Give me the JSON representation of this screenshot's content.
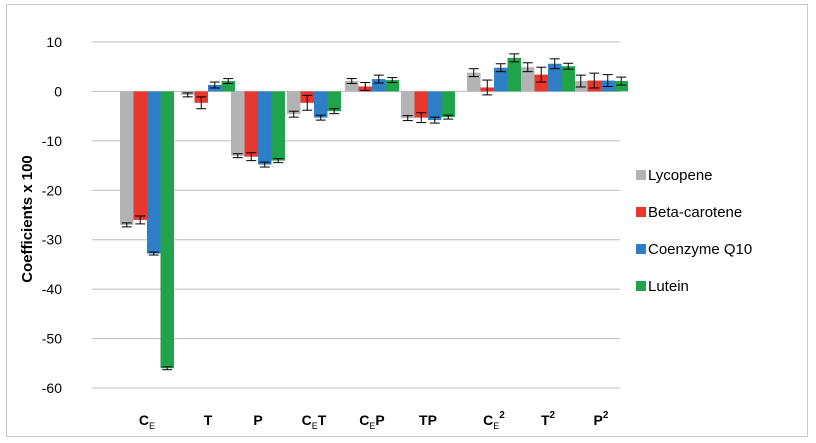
{
  "chart_data": {
    "type": "bar",
    "title": "",
    "xlabel": "",
    "ylabel": "Coefficients x 100",
    "ylim": [
      -60,
      10
    ],
    "yticks": [
      10,
      0,
      -10,
      -20,
      -30,
      -40,
      -50,
      -60
    ],
    "grid": true,
    "legend_position": "right",
    "categories": [
      {
        "base": "C",
        "sub": "E",
        "rest": "",
        "sup": ""
      },
      {
        "base": "T",
        "sub": "",
        "rest": "",
        "sup": ""
      },
      {
        "base": "P",
        "sub": "",
        "rest": "",
        "sup": ""
      },
      {
        "base": "C",
        "sub": "E",
        "rest": "T",
        "sup": ""
      },
      {
        "base": "C",
        "sub": "E",
        "rest": "P",
        "sup": ""
      },
      {
        "base": "TP",
        "sub": "",
        "rest": "",
        "sup": ""
      },
      {
        "base": "C",
        "sub": "E",
        "rest": "",
        "sup": "2"
      },
      {
        "base": "T",
        "sub": "",
        "rest": "",
        "sup": "2"
      },
      {
        "base": "P",
        "sub": "",
        "rest": "",
        "sup": "2"
      }
    ],
    "series": [
      {
        "name": "Lycopene",
        "color": "#b3b3b3",
        "values": [
          -27,
          -0.7,
          -13,
          -4.6,
          2.1,
          -5.4,
          3.8,
          4.9,
          2.1
        ],
        "errors": [
          0.4,
          0.4,
          0.4,
          0.6,
          0.5,
          0.5,
          0.8,
          0.9,
          1.2
        ]
      },
      {
        "name": "Beta-carotene",
        "color": "#e8372e",
        "values": [
          -26,
          -2.3,
          -13.2,
          -2.3,
          1,
          -5.3,
          0.8,
          3.4,
          2.2
        ],
        "errors": [
          0.8,
          1.2,
          0.8,
          1.5,
          0.8,
          1.0,
          1.5,
          1.5,
          1.5
        ]
      },
      {
        "name": "Coenzyme Q10",
        "color": "#2f7fc8",
        "values": [
          -32.8,
          1.3,
          -14.8,
          -5.3,
          2.5,
          -5.8,
          4.8,
          5.6,
          2.2
        ],
        "errors": [
          0.3,
          0.6,
          0.5,
          0.5,
          0.8,
          0.6,
          0.8,
          1.0,
          1.2
        ]
      },
      {
        "name": "Lutein",
        "color": "#20a34a",
        "values": [
          -56,
          2.1,
          -14,
          -4,
          2.3,
          -5.2,
          6.8,
          5.1,
          2.1
        ],
        "errors": [
          0.3,
          0.5,
          0.4,
          0.5,
          0.5,
          0.4,
          0.8,
          0.6,
          0.8
        ]
      }
    ]
  }
}
